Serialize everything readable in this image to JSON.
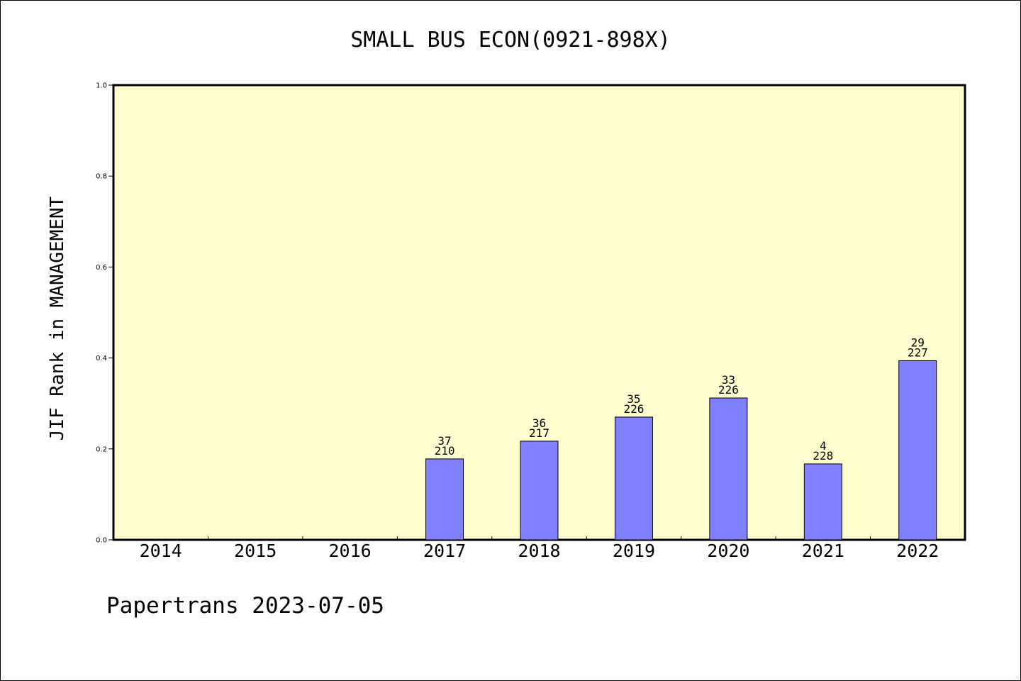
{
  "chart_data": {
    "type": "bar",
    "title": "SMALL BUS ECON(0921-898X)",
    "ylabel": "JIF Rank in MANAGEMENT",
    "xlabel": "",
    "ylim": [
      0,
      1.0
    ],
    "yticks": [
      "0.0",
      "0.2",
      "0.4",
      "0.6",
      "0.8",
      "1.0"
    ],
    "grid": false,
    "background_color": "#ffffd0",
    "bar_color": "#8080ff",
    "categories": [
      "2014",
      "2015",
      "2016",
      "2017",
      "2018",
      "2019",
      "2020",
      "2021",
      "2022"
    ],
    "values": [
      null,
      null,
      null,
      0.178,
      0.217,
      0.27,
      0.312,
      0.167,
      0.394
    ],
    "bar_labels": [
      null,
      null,
      null,
      {
        "rank": "37",
        "total": "210"
      },
      {
        "rank": "36",
        "total": "217"
      },
      {
        "rank": "35",
        "total": "226"
      },
      {
        "rank": "33",
        "total": "226"
      },
      {
        "rank": "4",
        "total": "228"
      },
      {
        "rank": "29",
        "total": "227"
      }
    ]
  },
  "footer": "Papertrans 2023-07-05"
}
